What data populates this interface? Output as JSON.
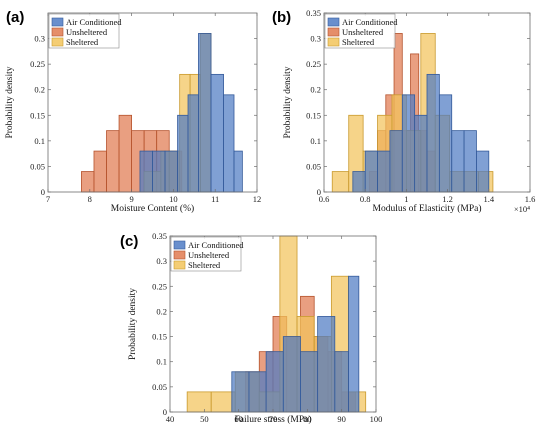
{
  "colors": {
    "air_conditioned": "#4f7bc4",
    "unsheltered": "#e07a50",
    "sheltered": "#f2c45c",
    "air_conditioned_edge": "#345a9a",
    "unsheltered_edge": "#b5522c",
    "sheltered_edge": "#c99a2e"
  },
  "chart_data": [
    {
      "type": "bar",
      "panel_label": "(a)",
      "xlabel": "Moisture Content (%)",
      "ylabel": "Probability density",
      "xlim": [
        7,
        12
      ],
      "ylim": [
        0,
        0.35
      ],
      "xticks": [
        "7",
        "8",
        "9",
        "10",
        "11",
        "12"
      ],
      "yticks": [
        "0",
        "0.05",
        "0.1",
        "0.15",
        "0.2",
        "0.25",
        "0.3"
      ],
      "legend_position": "top-left",
      "series": [
        {
          "name": "Unsheltered",
          "color_key": "unsheltered",
          "bins": [
            [
              7.8,
              8.1,
              0.04
            ],
            [
              8.1,
              8.4,
              0.08
            ],
            [
              8.4,
              8.7,
              0.12
            ],
            [
              8.7,
              9.0,
              0.15
            ],
            [
              9.0,
              9.3,
              0.12
            ],
            [
              9.3,
              9.6,
              0.12
            ],
            [
              9.6,
              9.9,
              0.12
            ],
            [
              9.9,
              10.2,
              0.08
            ]
          ]
        },
        {
          "name": "Sheltered",
          "color_key": "sheltered",
          "bins": [
            [
              9.3,
              9.5,
              0.04
            ],
            [
              9.5,
              9.7,
              0.04
            ],
            [
              9.7,
              9.9,
              0.08
            ],
            [
              9.9,
              10.15,
              0.08
            ],
            [
              10.15,
              10.4,
              0.23
            ],
            [
              10.4,
              10.65,
              0.23
            ],
            [
              10.65,
              10.9,
              0.31
            ],
            [
              10.9,
              11.15,
              0.0
            ]
          ]
        },
        {
          "name": "Air Conditioned",
          "color_key": "air_conditioned",
          "bins": [
            [
              9.2,
              9.5,
              0.08
            ],
            [
              9.5,
              9.8,
              0.08
            ],
            [
              9.8,
              10.1,
              0.08
            ],
            [
              10.1,
              10.35,
              0.15
            ],
            [
              10.35,
              10.6,
              0.19
            ],
            [
              10.6,
              10.9,
              0.31
            ],
            [
              10.9,
              11.2,
              0.23
            ],
            [
              11.2,
              11.45,
              0.19
            ],
            [
              11.45,
              11.65,
              0.08
            ]
          ]
        }
      ]
    },
    {
      "type": "bar",
      "panel_label": "(b)",
      "xlabel": "Modulus of Elasticity (MPa)",
      "ylabel": "Probability density",
      "x_multiplier": "×10⁴",
      "xlim": [
        0.6,
        1.6
      ],
      "ylim": [
        0,
        0.35
      ],
      "xticks": [
        "0.6",
        "0.8",
        "1",
        "1.2",
        "1.4",
        "1.6"
      ],
      "yticks": [
        "0",
        "0.05",
        "0.1",
        "0.15",
        "0.2",
        "0.25",
        "0.3",
        "0.35"
      ],
      "legend_position": "top-left",
      "series": [
        {
          "name": "Unsheltered",
          "color_key": "unsheltered",
          "bins": [
            [
              0.82,
              0.86,
              0.04
            ],
            [
              0.86,
              0.9,
              0.12
            ],
            [
              0.9,
              0.94,
              0.19
            ],
            [
              0.94,
              0.98,
              0.31
            ],
            [
              0.98,
              1.02,
              0.12
            ],
            [
              1.02,
              1.06,
              0.27
            ],
            [
              1.06,
              1.1,
              0.12
            ],
            [
              1.1,
              1.14,
              0.08
            ]
          ]
        },
        {
          "name": "Sheltered",
          "color_key": "sheltered",
          "bins": [
            [
              0.64,
              0.72,
              0.04
            ],
            [
              0.72,
              0.79,
              0.15
            ],
            [
              0.79,
              0.86,
              0.08
            ],
            [
              0.86,
              0.93,
              0.15
            ],
            [
              0.93,
              1.0,
              0.19
            ],
            [
              1.0,
              1.07,
              0.12
            ],
            [
              1.07,
              1.14,
              0.31
            ],
            [
              1.14,
              1.21,
              0.15
            ],
            [
              1.21,
              1.28,
              0.04
            ],
            [
              1.28,
              1.35,
              0.04
            ],
            [
              1.35,
              1.42,
              0.04
            ]
          ]
        },
        {
          "name": "Air Conditioned",
          "color_key": "air_conditioned",
          "bins": [
            [
              0.74,
              0.8,
              0.04
            ],
            [
              0.8,
              0.86,
              0.08
            ],
            [
              0.86,
              0.92,
              0.08
            ],
            [
              0.92,
              0.98,
              0.12
            ],
            [
              0.98,
              1.04,
              0.19
            ],
            [
              1.04,
              1.1,
              0.15
            ],
            [
              1.1,
              1.16,
              0.23
            ],
            [
              1.16,
              1.22,
              0.19
            ],
            [
              1.22,
              1.28,
              0.12
            ],
            [
              1.28,
              1.34,
              0.12
            ],
            [
              1.34,
              1.4,
              0.08
            ]
          ]
        }
      ]
    },
    {
      "type": "bar",
      "panel_label": "(c)",
      "xlabel": "Failure stress (MPa)",
      "ylabel": "Probability density",
      "xlim": [
        40,
        100
      ],
      "ylim": [
        0,
        0.35
      ],
      "xticks": [
        "40",
        "50",
        "60",
        "70",
        "80",
        "90",
        "100"
      ],
      "yticks": [
        "0",
        "0.05",
        "0.1",
        "0.15",
        "0.2",
        "0.25",
        "0.3",
        "0.35"
      ],
      "legend_position": "top-left",
      "series": [
        {
          "name": "Unsheltered",
          "color_key": "unsheltered",
          "bins": [
            [
              62,
              66,
              0.08
            ],
            [
              66,
              70,
              0.12
            ],
            [
              70,
              74,
              0.19
            ],
            [
              74,
              78,
              0.15
            ],
            [
              78,
              82,
              0.23
            ],
            [
              82,
              86,
              0.15
            ],
            [
              86,
              90,
              0.12
            ],
            [
              90,
              94,
              0.04
            ]
          ]
        },
        {
          "name": "Sheltered",
          "color_key": "sheltered",
          "bins": [
            [
              45,
              52,
              0.04
            ],
            [
              52,
              59,
              0.04
            ],
            [
              59,
              66,
              0.08
            ],
            [
              66,
              72,
              0.04
            ],
            [
              72,
              77,
              0.35
            ],
            [
              77,
              82,
              0.19
            ],
            [
              82,
              87,
              0.15
            ],
            [
              87,
              92,
              0.27
            ],
            [
              92,
              97,
              0.04
            ]
          ]
        },
        {
          "name": "Air Conditioned",
          "color_key": "air_conditioned",
          "bins": [
            [
              58,
              63,
              0.08
            ],
            [
              63,
              68,
              0.08
            ],
            [
              68,
              73,
              0.12
            ],
            [
              73,
              78,
              0.15
            ],
            [
              78,
              83,
              0.12
            ],
            [
              83,
              88,
              0.19
            ],
            [
              88,
              92,
              0.12
            ],
            [
              92,
              95,
              0.27
            ]
          ]
        }
      ]
    }
  ]
}
